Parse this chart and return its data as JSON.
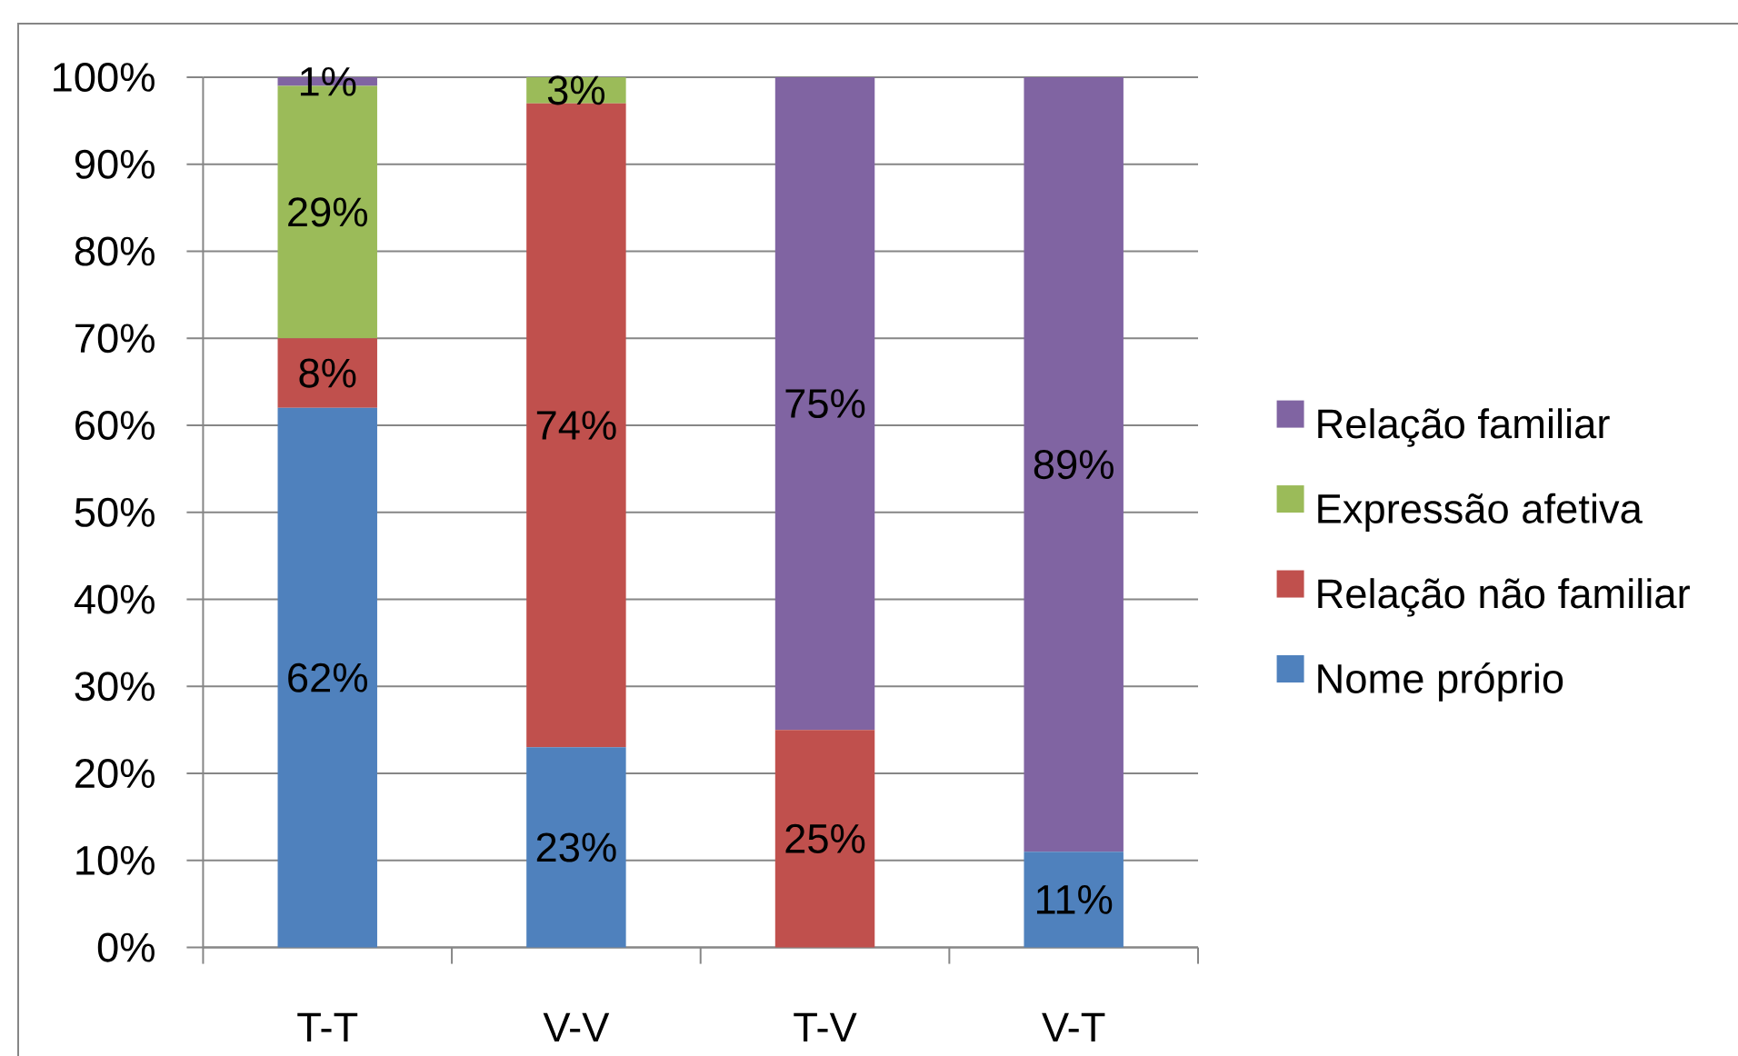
{
  "chart_data": {
    "type": "bar",
    "stacked": true,
    "categories": [
      "T-T",
      "V-V",
      "T-V",
      "V-T"
    ],
    "series": [
      {
        "name": "Nome próprio",
        "color": "#4f81bd",
        "values": [
          62,
          23,
          null,
          11
        ],
        "value_labels": [
          "62%",
          "23%",
          null,
          "11%"
        ]
      },
      {
        "name": "Relação não familiar",
        "color": "#c0504d",
        "values": [
          8,
          74,
          25,
          null
        ],
        "value_labels": [
          "8%",
          "74%",
          "25%",
          null
        ]
      },
      {
        "name": "Expressão afetiva",
        "color": "#9bbb59",
        "values": [
          29,
          3,
          null,
          null
        ],
        "value_labels": [
          "29%",
          "3%",
          null,
          null
        ]
      },
      {
        "name": "Relação familiar",
        "color": "#8064a2",
        "values": [
          1,
          null,
          75,
          89
        ],
        "value_labels": [
          "1%",
          null,
          "75%",
          "89%"
        ]
      }
    ],
    "ylim": [
      0,
      100
    ],
    "yticks": [
      {
        "value": 0,
        "label": "0%"
      },
      {
        "value": 10,
        "label": "10%"
      },
      {
        "value": 20,
        "label": "20%"
      },
      {
        "value": 30,
        "label": "30%"
      },
      {
        "value": 40,
        "label": "40%"
      },
      {
        "value": 50,
        "label": "50%"
      },
      {
        "value": 60,
        "label": "60%"
      },
      {
        "value": 70,
        "label": "70%"
      },
      {
        "value": 80,
        "label": "80%"
      },
      {
        "value": 90,
        "label": "90%"
      },
      {
        "value": 100,
        "label": "100%"
      }
    ],
    "grid": "y",
    "legend": "right"
  }
}
